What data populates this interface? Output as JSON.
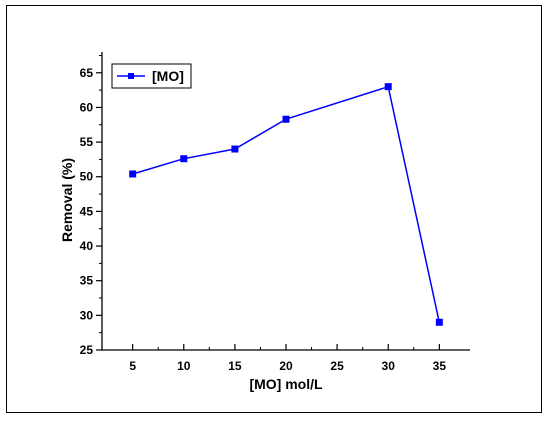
{
  "chart_data": {
    "type": "line",
    "title": "",
    "xlabel": "[MO] mol/L",
    "ylabel": "Removal (%)",
    "xlim": [
      2,
      38
    ],
    "ylim": [
      25,
      68
    ],
    "x_ticks": [
      5,
      10,
      15,
      20,
      25,
      30,
      35
    ],
    "y_ticks": [
      25,
      30,
      35,
      40,
      45,
      50,
      55,
      60,
      65
    ],
    "grid": false,
    "legend_position": "top-left",
    "series": [
      {
        "name": "[MO]",
        "color": "#0000ff",
        "marker": "square",
        "x": [
          5,
          10,
          15,
          20,
          30,
          35
        ],
        "y": [
          50.4,
          52.6,
          54.0,
          58.3,
          63.0,
          29.0
        ]
      }
    ]
  }
}
